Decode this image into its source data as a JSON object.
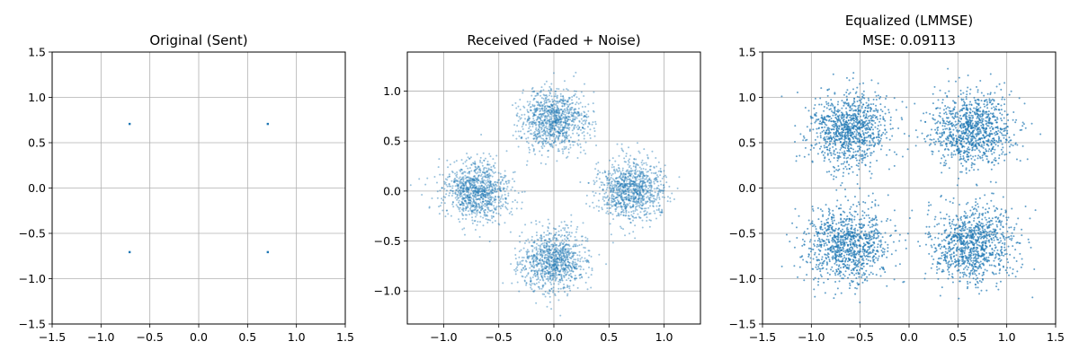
{
  "chart_data": [
    {
      "type": "scatter",
      "title": "Original (Sent)",
      "subtitle": "",
      "xlabel": "",
      "ylabel": "",
      "xlim": [
        -1.5,
        1.5
      ],
      "ylim": [
        -1.5,
        1.5
      ],
      "xticks": [
        -1.5,
        -1.0,
        -0.5,
        0.0,
        0.5,
        1.0,
        1.5
      ],
      "yticks": [
        -1.5,
        -1.0,
        -0.5,
        0.0,
        0.5,
        1.0,
        1.5
      ],
      "xtick_labels": [
        "−1.5",
        "−1.0",
        "−0.5",
        "0.0",
        "0.5",
        "1.0",
        "1.5"
      ],
      "ytick_labels": [
        "−1.5",
        "−1.0",
        "−0.5",
        "0.0",
        "0.5",
        "1.0",
        "1.5"
      ],
      "grid": true,
      "color": "#1f77b4",
      "points": [
        [
          -0.707,
          0.707
        ],
        [
          0.707,
          0.707
        ],
        [
          -0.707,
          -0.707
        ],
        [
          0.707,
          -0.707
        ]
      ],
      "clusters": []
    },
    {
      "type": "scatter",
      "title": "Received (Faded + Noise)",
      "subtitle": "",
      "xlabel": "",
      "ylabel": "",
      "xlim": [
        -1.33,
        1.33
      ],
      "ylim": [
        -1.33,
        1.39
      ],
      "xticks": [
        -1.0,
        -0.5,
        0.0,
        0.5,
        1.0
      ],
      "yticks": [
        -1.0,
        -0.5,
        0.0,
        0.5,
        1.0
      ],
      "xtick_labels": [
        "−1.0",
        "−0.5",
        "0.0",
        "0.5",
        "1.0"
      ],
      "ytick_labels": [
        "−1.0",
        "−0.5",
        "0.0",
        "0.5",
        "1.0"
      ],
      "grid": true,
      "color": "#1f77b4",
      "points": [],
      "clusters": [
        {
          "cx": 0.0,
          "cy": 0.7,
          "sd": 0.15,
          "n": 1000
        },
        {
          "cx": -0.7,
          "cy": 0.0,
          "sd": 0.15,
          "n": 1000
        },
        {
          "cx": 0.7,
          "cy": 0.0,
          "sd": 0.15,
          "n": 1000
        },
        {
          "cx": 0.0,
          "cy": -0.7,
          "sd": 0.15,
          "n": 1000
        }
      ]
    },
    {
      "type": "scatter",
      "title": "Equalized (LMMSE)",
      "subtitle": "MSE: 0.09113",
      "xlabel": "",
      "ylabel": "",
      "xlim": [
        -1.5,
        1.5
      ],
      "ylim": [
        -1.5,
        1.5
      ],
      "xticks": [
        -1.5,
        -1.0,
        -0.5,
        0.0,
        0.5,
        1.0,
        1.5
      ],
      "yticks": [
        -1.5,
        -1.0,
        -0.5,
        0.0,
        0.5,
        1.0,
        1.5
      ],
      "xtick_labels": [
        "−1.5",
        "−1.0",
        "−0.5",
        "0.0",
        "0.5",
        "1.0",
        "1.5"
      ],
      "ytick_labels": [
        "−1.5",
        "−1.0",
        "−0.5",
        "0.0",
        "0.5",
        "1.0",
        "1.5"
      ],
      "grid": true,
      "color": "#1f77b4",
      "points": [],
      "clusters": [
        {
          "cx": -0.62,
          "cy": 0.64,
          "sd": 0.21,
          "n": 1000
        },
        {
          "cx": 0.64,
          "cy": 0.64,
          "sd": 0.21,
          "n": 1000
        },
        {
          "cx": -0.62,
          "cy": -0.62,
          "sd": 0.21,
          "n": 1000
        },
        {
          "cx": 0.64,
          "cy": -0.62,
          "sd": 0.21,
          "n": 1000
        }
      ]
    }
  ]
}
